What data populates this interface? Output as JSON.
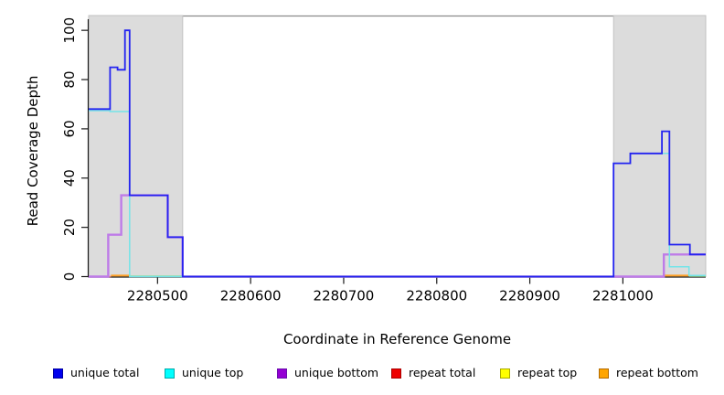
{
  "chart_data": {
    "type": "line",
    "title": "",
    "xlabel": "Coordinate in Reference Genome",
    "ylabel": "Read Coverage Depth",
    "xlim": [
      2280426,
      2281089
    ],
    "ylim": [
      0,
      106
    ],
    "xticks": [
      2280500,
      2280600,
      2280700,
      2280800,
      2280900,
      2281000
    ],
    "yticks": [
      0,
      20,
      40,
      60,
      80,
      100
    ],
    "grid": false,
    "legend_position": "bottom",
    "shaded_regions": [
      {
        "name": "repeat-region-left",
        "x0": 2280426,
        "x1": 2280527,
        "fill": "#DCDCDC"
      },
      {
        "name": "repeat-region-right",
        "x0": 2280990,
        "x1": 2281089,
        "fill": "#DCDCDC"
      }
    ],
    "series": [
      {
        "name": "repeat top",
        "line_color": "#94DB94",
        "width": 1.6,
        "segments": [
          [
            [
              2280470,
              0.2
            ],
            [
              2280527,
              0.2
            ]
          ],
          [
            [
              2281071,
              0.2
            ],
            [
              2281089,
              0.2
            ]
          ]
        ]
      },
      {
        "name": "repeat total",
        "line_color": "#E97A80",
        "width": 1.6,
        "segments": [
          [
            [
              2280426,
              0
            ],
            [
              2280450,
              0
            ]
          ],
          [
            [
              2280990,
              0
            ],
            [
              2281044,
              0
            ]
          ]
        ]
      },
      {
        "name": "repeat bottom",
        "line_color": "#FFA126",
        "width": 2.0,
        "segments": [
          [
            [
              2280450,
              0.4
            ],
            [
              2280470,
              0.4
            ]
          ],
          [
            [
              2281044,
              0.4
            ],
            [
              2281071,
              0.4
            ]
          ]
        ]
      },
      {
        "name": "unique bottom",
        "line_color": "#BE7BE8",
        "width": 2.4,
        "segments": [
          [
            [
              2280426,
              0
            ],
            [
              2280447,
              17
            ],
            [
              2280461,
              33
            ],
            [
              2280511,
              16
            ],
            [
              2280527,
              0
            ],
            [
              2281044,
              9
            ],
            [
              2281089,
              9
            ]
          ]
        ]
      },
      {
        "name": "unique top",
        "line_color": "#74E4E8",
        "width": 1.5,
        "segments": [
          [
            [
              2280426,
              67.4
            ],
            [
              2280449,
              67
            ],
            [
              2280470,
              0
            ],
            [
              2280990,
              46
            ],
            [
              2281008,
              50
            ],
            [
              2281050,
              4
            ],
            [
              2281071,
              0.5
            ],
            [
              2281089,
              0.5
            ]
          ]
        ]
      },
      {
        "name": "unique total",
        "line_color": "#2323F0",
        "width": 1.8,
        "segments": [
          [
            [
              2280426,
              68
            ],
            [
              2280449,
              85
            ],
            [
              2280457,
              84
            ],
            [
              2280465,
              100
            ],
            [
              2280470,
              33
            ],
            [
              2280511,
              16
            ],
            [
              2280527,
              0
            ],
            [
              2280990,
              46
            ],
            [
              2281008,
              50
            ],
            [
              2281042,
              59
            ],
            [
              2281050,
              13
            ],
            [
              2281072,
              9
            ],
            [
              2281089,
              9
            ]
          ]
        ]
      }
    ]
  },
  "legend": {
    "items": [
      {
        "label": "unique total",
        "fill": "#0000EE",
        "edge": "#0000A0"
      },
      {
        "label": "unique top",
        "fill": "#00FFFF",
        "edge": "#00AAAA"
      },
      {
        "label": "unique bottom",
        "fill": "#9400D3",
        "edge": "#6A0DAD"
      },
      {
        "label": "repeat total",
        "fill": "#EE0000",
        "edge": "#AA0000"
      },
      {
        "label": "repeat top",
        "fill": "#FFFF00",
        "edge": "#AAAA00"
      },
      {
        "label": "repeat bottom",
        "fill": "#FFA500",
        "edge": "#B36B00"
      }
    ]
  },
  "colors": {
    "plot_bg": "#FFFFFF",
    "shade": "#DCDCDC",
    "axis": "#1A1A1A",
    "top_border": "#8A8A8A",
    "tick_text": "#000000"
  }
}
